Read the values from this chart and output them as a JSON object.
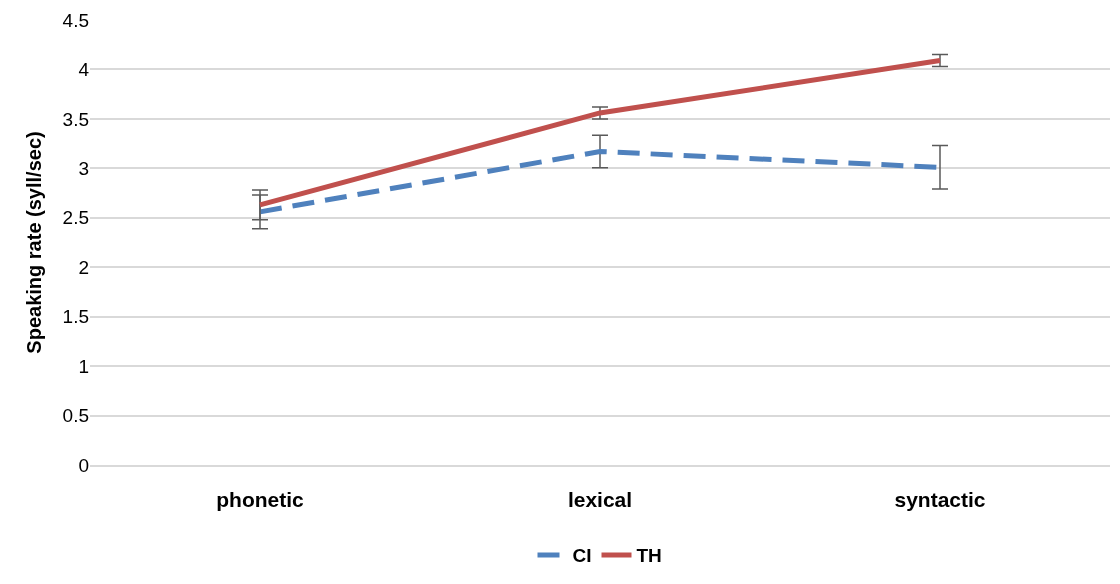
{
  "chart_data": {
    "type": "line",
    "ylabel": "Speaking rate (syll/sec)",
    "categories": [
      "phonetic",
      "lexical",
      "syntactic"
    ],
    "series": [
      {
        "name": "CI",
        "color": "#4f81bd",
        "line_style": "dashed",
        "values": [
          2.56,
          3.17,
          3.01
        ],
        "errors": [
          0.17,
          0.165,
          0.22
        ]
      },
      {
        "name": "TH",
        "color": "#c0504d",
        "line_style": "solid",
        "values": [
          2.63,
          3.56,
          4.09
        ],
        "errors": [
          0.15,
          0.06,
          0.06
        ]
      }
    ],
    "ylim": [
      0,
      4.5
    ],
    "yticks": [
      0,
      0.5,
      1,
      1.5,
      2,
      2.5,
      3,
      3.5,
      4,
      4.5
    ],
    "grid": "y",
    "legend": "bottom"
  }
}
